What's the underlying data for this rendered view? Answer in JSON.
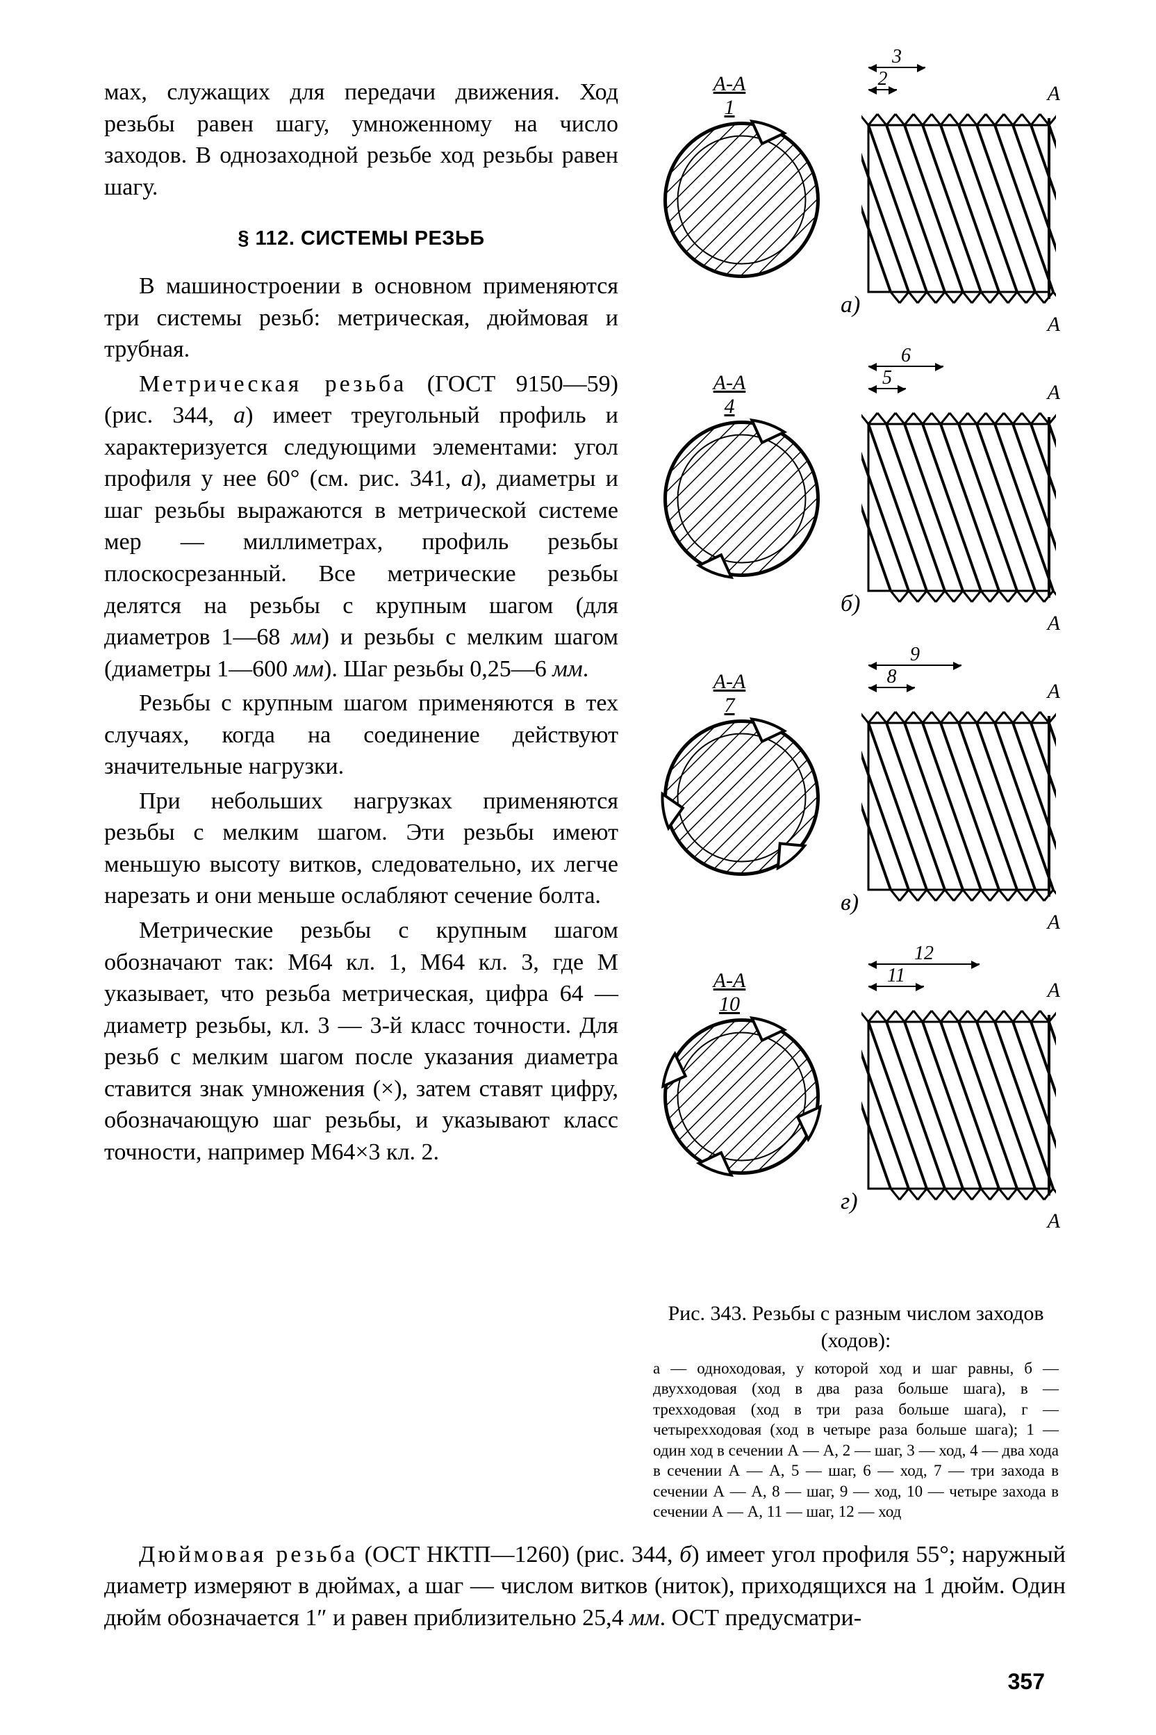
{
  "page_number": "357",
  "text": {
    "para0": "мах, служащих для передачи движения. Ход резьбы равен шагу, умноженному на число заходов. В однозаходной резьбе ход резьбы равен шагу.",
    "heading": "§ 112. СИСТЕМЫ РЕЗЬБ",
    "para1": "В машиностроении в основном применяются три системы резьб: метрическая, дюймовая и трубная.",
    "para2a": "Метрическая резьба",
    "para2b": " (ГОСТ 9150—59) (рис. 344, ",
    "para2b_i": "а",
    "para2c": ") имеет треугольный профиль и характеризуется следующими элементами: угол профиля у нее 60° (см. рис. 341, ",
    "para2c_i": "а",
    "para2d": "), диаметры и шаг резьбы выражаются в метрической системе мер — миллиметрах, профиль резьбы плоскосрезанный. Все метрические резьбы делятся на резьбы с крупным шагом (для диаметров 1—68 ",
    "para2d_i": "мм",
    "para2e": ") и резьбы с мелким шагом (диаметры 1—600 ",
    "para2e_i": "мм",
    "para2f": "). Шаг резьбы 0,25—6 ",
    "para2f_i": "мм",
    "para2g": ".",
    "para3": "Резьбы с крупным шагом применяются в тех случаях, когда на соединение действуют значительные нагрузки.",
    "para4": "При небольших нагрузках применяются резьбы с мелким шагом. Эти резьбы имеют меньшую высоту витков, следовательно, их легче нарезать и они меньше ослабляют сечение болта.",
    "para5": "Метрические резьбы с крупным шагом обозначают так: М64 кл. 1, М64 кл. 3, где М указывает, что резьба метрическая, цифра 64 — диаметр резьбы, кл. 3 — 3-й класс точности. Для резьб с мелким шагом после указания диаметра ставится знак умножения (×), затем ставят цифру, обозначающую шаг резьбы, и указывают класс точности, например М64×3 кл. 2.",
    "bottom_a": "Дюймовая резьба",
    "bottom_b": " (ОСТ НКТП—1260) (рис. 344, ",
    "bottom_b_i": "б",
    "bottom_c": ") имеет угол профиля 55°; наружный диаметр измеряют в дюймах, а шаг — числом витков (ниток), приходящихся на 1 дюйм. Один дюйм обозначается 1″ и равен приблизительно 25,4 ",
    "bottom_c_i": "мм",
    "bottom_d": ". ОСТ предусматри-"
  },
  "figure": {
    "caption_main": "Рис. 343. Резьбы с разным числом заходов (ходов):",
    "caption_legend": "а — одноходовая, у которой ход и шаг равны, б — двухходовая (ход в два раза больше шага), в — трехходовая (ход в три раза больше шага), г — четырехходовая (ход в четыре раза больше шага); 1 — один ход в сечении А — А, 2 — шаг, 3 — ход, 4 — два хода в сечении А — А, 5 — шаг, 6 — ход, 7 — три захода в сечении А — А, 8 — шаг, 9 — ход, 10 — четыре захода в сечении А — А, 11 — шаг, 12 — ход",
    "tiles": [
      {
        "letter": "а)",
        "section_label": "А-А",
        "section_num": "1",
        "inner_dim": "2",
        "outer_dim": "3",
        "starts": 1,
        "A_right": "А"
      },
      {
        "letter": "б)",
        "section_label": "А-А",
        "section_num": "4",
        "inner_dim": "5",
        "outer_dim": "6",
        "starts": 2,
        "A_right": "А"
      },
      {
        "letter": "в)",
        "section_label": "А-А",
        "section_num": "7",
        "inner_dim": "8",
        "outer_dim": "9",
        "starts": 3,
        "A_right": "А"
      },
      {
        "letter": "г)",
        "section_label": "А-А",
        "section_num": "10",
        "inner_dim": "11",
        "outer_dim": "12",
        "starts": 4,
        "A_right": "А"
      }
    ],
    "colors": {
      "stroke": "#000000",
      "hatch": "#000000",
      "bg": "#ffffff"
    }
  }
}
